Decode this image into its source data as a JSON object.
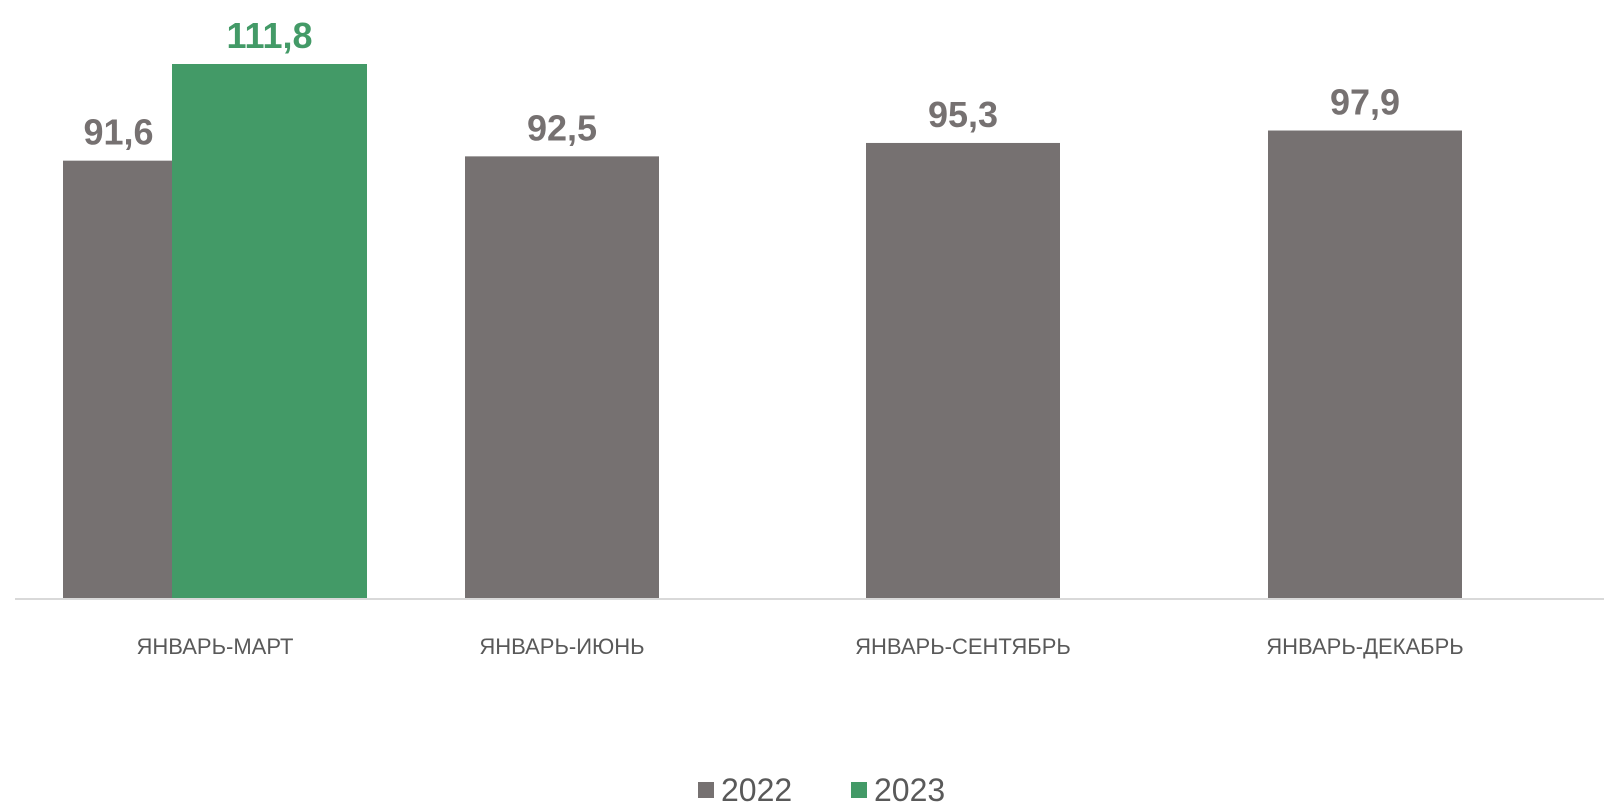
{
  "chart_data": {
    "type": "bar",
    "categories": [
      "ЯНВАРЬ-МАРТ",
      "ЯНВАРЬ-ИЮНЬ",
      "ЯНВАРЬ-СЕНТЯБРЬ",
      "ЯНВАРЬ-ДЕКАБРЬ"
    ],
    "series": [
      {
        "name": "2022",
        "color": "#767171",
        "values": [
          91.6,
          92.5,
          95.3,
          97.9
        ],
        "labels": [
          "91,6",
          "92,5",
          "95,3",
          "97,9"
        ]
      },
      {
        "name": "2023",
        "color": "#439A67",
        "values": [
          111.8,
          null,
          null,
          null
        ],
        "labels": [
          "111,8",
          null,
          null,
          null
        ]
      }
    ],
    "ylim": [
      0,
      111.8
    ],
    "grid": false,
    "legend": "bottom-center",
    "axis_color": "#D9D9D9"
  }
}
